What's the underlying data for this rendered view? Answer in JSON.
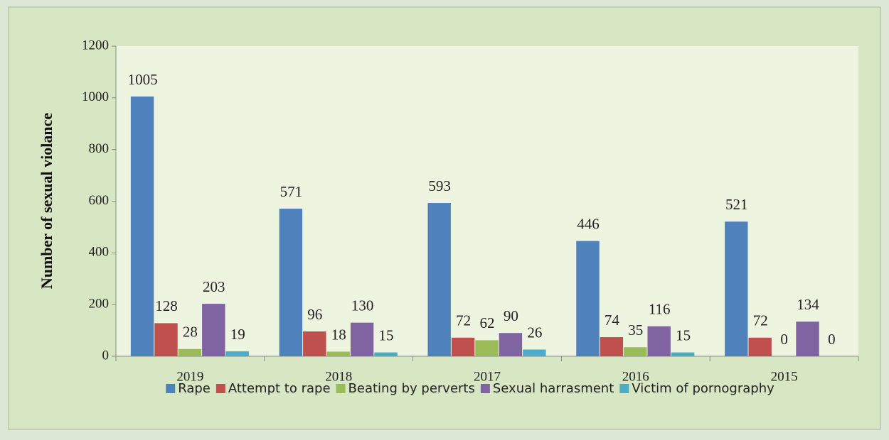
{
  "chart_data": {
    "type": "bar",
    "ylabel": "Number of sexual violance",
    "categories": [
      "2019",
      "2018",
      "2017",
      "2016",
      "2015"
    ],
    "series": [
      {
        "name": "Rape",
        "color": "#4f81bd",
        "values": [
          1005,
          571,
          593,
          446,
          521
        ]
      },
      {
        "name": "Attempt to rape",
        "color": "#c0504d",
        "values": [
          128,
          96,
          72,
          74,
          72
        ]
      },
      {
        "name": "Beating by perverts",
        "color": "#9bbb59",
        "values": [
          28,
          18,
          62,
          35,
          0
        ]
      },
      {
        "name": "Sexual harrasment",
        "color": "#8064a2",
        "values": [
          203,
          130,
          90,
          116,
          134
        ]
      },
      {
        "name": "Victim of pornography",
        "color": "#4bacc6",
        "values": [
          19,
          15,
          26,
          15,
          0
        ]
      }
    ],
    "ylim": [
      0,
      1200
    ],
    "yticks": [
      0,
      200,
      400,
      600,
      800,
      1000,
      1200
    ],
    "legend": "bottom"
  }
}
